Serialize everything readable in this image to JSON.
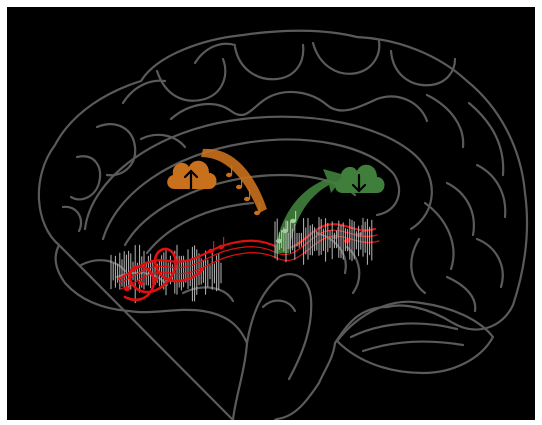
{
  "colors": {
    "background": "#000000",
    "frame": "#ffffff",
    "brain_outline": "#5a5a5a",
    "signal_red": "#e01010",
    "upload_orange": "#c8701c",
    "download_green": "#3f7f3b",
    "waveform_gray": "#b8b8b8"
  },
  "icons": {
    "upload": "cloud-upload-icon",
    "download": "cloud-download-icon"
  }
}
